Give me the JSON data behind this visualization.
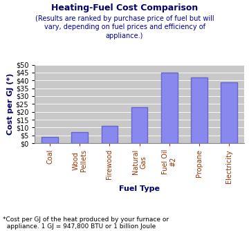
{
  "title": "Heating-Fuel Cost Comparison",
  "subtitle": "(Results are ranked by purchase price of fuel but will\nvary, depending on fuel prices and efficiency of\nappliance.)",
  "categories": [
    "Coal",
    "Wood\nPellets",
    "Firewood",
    "Natural\nGas",
    "Fuel Oil\n#2",
    "Propane",
    "Electricity"
  ],
  "values": [
    4,
    7,
    11,
    23,
    45,
    42,
    39
  ],
  "bar_color": "#8888ee",
  "xlabel": "Fuel Type",
  "ylabel": "Cost per GJ (*)",
  "ylim": [
    0,
    50
  ],
  "yticks": [
    0,
    5,
    10,
    15,
    20,
    25,
    30,
    35,
    40,
    45,
    50
  ],
  "ytick_labels": [
    "$0",
    "$5",
    "$10",
    "$15",
    "$20",
    "$25",
    "$30",
    "$35",
    "$40",
    "$45",
    "$50"
  ],
  "footnote": "*Cost per GJ of the heat produced by your furnace or\n  appliance. 1 GJ = 947,800 BTU or 1 billion Joule",
  "title_color": "#000066",
  "subtitle_color": "#000099",
  "xlabel_color": "#000066",
  "ylabel_color": "#000066",
  "xticklabel_color": "#993300",
  "ytick_color": "#000000",
  "background_color": "#c8c8c8",
  "title_fontsize": 9,
  "subtitle_fontsize": 7,
  "axis_label_fontsize": 8,
  "tick_label_fontsize": 7,
  "footnote_fontsize": 6.5
}
